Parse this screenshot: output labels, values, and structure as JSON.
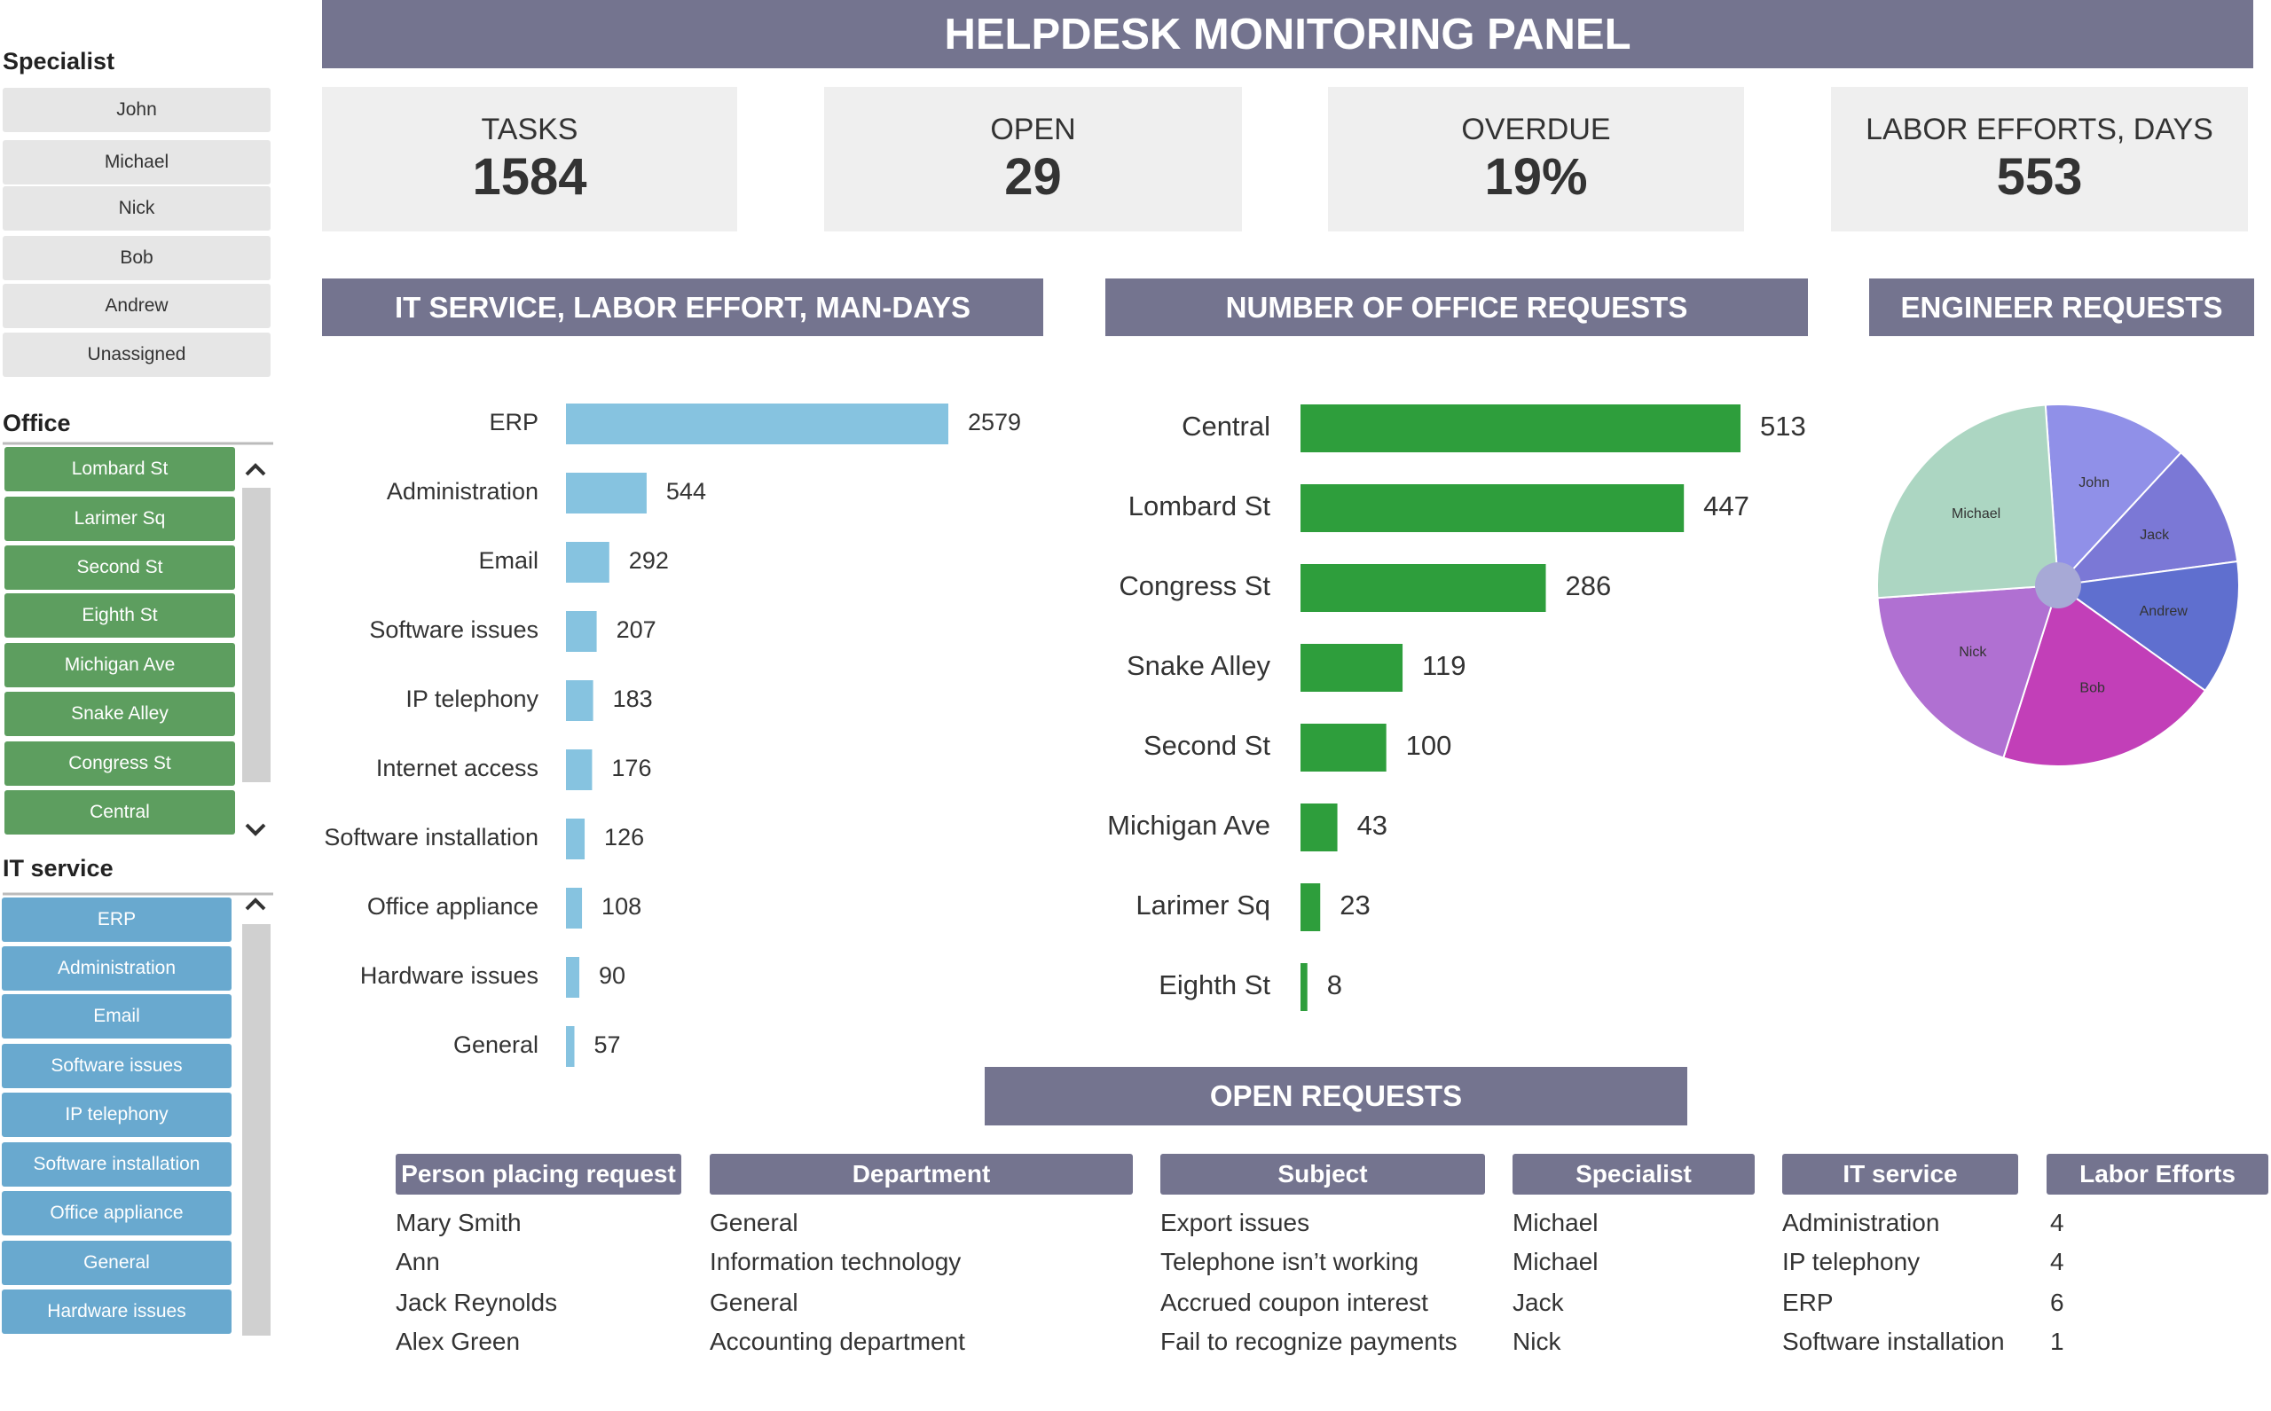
{
  "header": {
    "title": "HELPDESK MONITORING PANEL"
  },
  "filters": {
    "specialist": {
      "label": "Specialist",
      "items": [
        "John",
        "Michael",
        "Nick",
        "Bob",
        "Andrew",
        "Unassigned"
      ]
    },
    "office": {
      "label": "Office",
      "items": [
        "Lombard St",
        "Larimer Sq",
        "Second St",
        "Eighth St",
        "Michigan Ave",
        "Snake Alley",
        "Congress St",
        "Central"
      ]
    },
    "it_service": {
      "label": "IT service",
      "items": [
        "ERP",
        "Administration",
        "Email",
        "Software issues",
        "IP telephony",
        "Software installation",
        "Office appliance",
        "General",
        "Hardware issues"
      ]
    }
  },
  "kpis": [
    {
      "label": "TASKS",
      "value": "1584"
    },
    {
      "label": "OPEN",
      "value": "29"
    },
    {
      "label": "OVERDUE",
      "value": "19%"
    },
    {
      "label": "LABOR EFFORTS, DAYS",
      "value": "553"
    }
  ],
  "chart_data": [
    {
      "type": "bar",
      "title": "IT SERVICE, LABOR EFFORT, MAN-DAYS",
      "categories": [
        "ERP",
        "Administration",
        "Email",
        "Software issues",
        "IP telephony",
        "Internet access",
        "Software installation",
        "Office appliance",
        "Hardware issues",
        "General"
      ],
      "values": [
        2579,
        544,
        292,
        207,
        183,
        176,
        126,
        108,
        90,
        57
      ],
      "color": "#86c3e0",
      "xlim": [
        0,
        2579
      ]
    },
    {
      "type": "bar",
      "title": "NUMBER OF OFFICE REQUESTS",
      "categories": [
        "Central",
        "Lombard St",
        "Congress St",
        "Snake Alley",
        "Second St",
        "Michigan Ave",
        "Larimer Sq",
        "Eighth St"
      ],
      "values": [
        513,
        447,
        286,
        119,
        100,
        43,
        23,
        8
      ],
      "color": "#2e9e3c",
      "xlim": [
        0,
        513
      ]
    },
    {
      "type": "pie",
      "title": "ENGINEER REQUESTS",
      "categories": [
        "John",
        "Jack",
        "Andrew",
        "Bob",
        "Nick",
        "Michael"
      ],
      "values": [
        13,
        11,
        12,
        20,
        19,
        25
      ],
      "colors": [
        "#9090e8",
        "#7b78d6",
        "#5f6fcf",
        "#c23fb8",
        "#b070d2",
        "#acd6c2"
      ]
    }
  ],
  "table": {
    "title": "OPEN REQUESTS",
    "columns": [
      "Person placing request",
      "Department",
      "Subject",
      "Specialist",
      "IT service",
      "Labor Efforts"
    ],
    "rows": [
      [
        "Mary Smith",
        "General",
        "Export issues",
        "Michael",
        "Administration",
        4
      ],
      [
        "Ann",
        "Information technology",
        "Telephone isn’t working",
        "Michael",
        "IP telephony",
        4
      ],
      [
        "Jack Reynolds",
        "General",
        "Accrued coupon interest",
        "Jack",
        "ERP",
        6
      ],
      [
        "Alex Green",
        "Accounting department",
        "Fail to recognize payments",
        "Nick",
        "Software installation",
        1
      ]
    ]
  }
}
